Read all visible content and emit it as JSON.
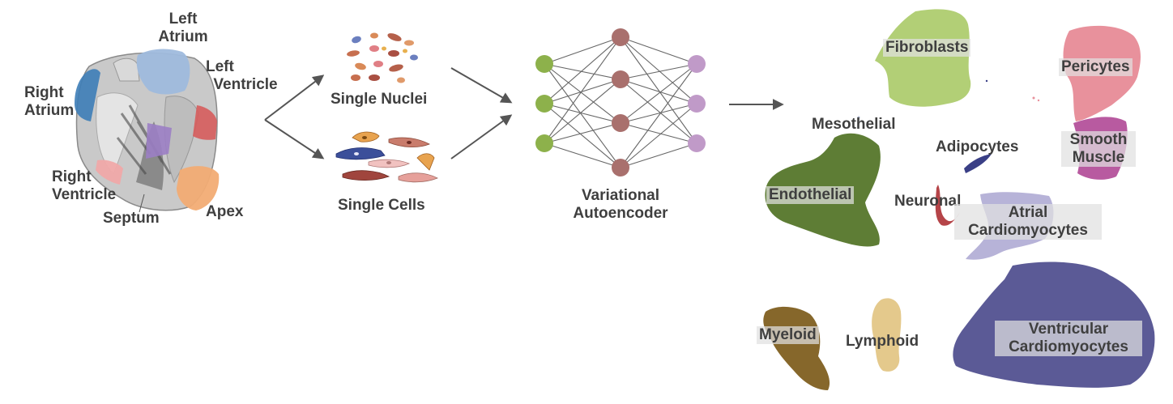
{
  "heart": {
    "left_atrium": [
      "Left",
      "Atrium"
    ],
    "left_ventricle": [
      "Left",
      "Ventricle"
    ],
    "right_atrium": [
      "Right",
      "Atrium"
    ],
    "right_ventricle": [
      "Right",
      "Ventricle"
    ],
    "septum": "Septum",
    "apex": "Apex"
  },
  "samples": {
    "nuclei": "Single Nuclei",
    "cells": "Single Cells"
  },
  "model": {
    "name": [
      "Variational",
      "Autoencoder"
    ],
    "layers": [
      3,
      4,
      3
    ]
  },
  "clusters": {
    "fibroblasts": "Fibroblasts",
    "pericytes": "Pericytes",
    "mesothelial": "Mesothelial",
    "adipocytes": "Adipocytes",
    "smooth_muscle": [
      "Smooth",
      "Muscle"
    ],
    "endothelial": "Endothelial",
    "neuronal": "Neuronal",
    "atrial": [
      "Atrial",
      "Cardiomyocytes"
    ],
    "myeloid": "Myeloid",
    "lymphoid": "Lymphoid",
    "ventricular": [
      "Ventricular",
      "Cardiomyocytes"
    ]
  },
  "colors": {
    "input_node": "#8db14b",
    "hidden_node": "#a9706d",
    "output_node": "#c09ac8",
    "fibroblasts": "#b2cf76",
    "pericytes": "#e8919c",
    "smooth_muscle": "#b85aa0",
    "endothelial": "#5e7d35",
    "adipocytes": "#3a3f86",
    "neuronal": "#b54448",
    "atrial": "#b7b3d8",
    "ventricular": "#5b5a96",
    "myeloid": "#86672b",
    "lymphoid": "#e4c98c",
    "right_atrium": "#3d7db7",
    "left_atrium": "#9fbbdd",
    "left_ventricle": "#d65c5c",
    "right_ventricle": "#f0a9a9",
    "septum": "#9b7ec4",
    "apex": "#f2ac74"
  }
}
